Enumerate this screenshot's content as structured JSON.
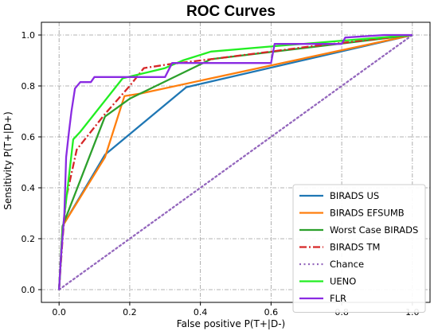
{
  "chart_data": {
    "type": "line",
    "title": "ROC Curves",
    "xlabel": "False positive P(T+|D-)",
    "ylabel": "Sensitivity P(T+|D+)",
    "xlim": [
      0,
      1
    ],
    "ylim": [
      0,
      1
    ],
    "xticks": [
      "0.0",
      "0.2",
      "0.4",
      "0.6",
      "0.8",
      "1.0"
    ],
    "yticks": [
      "0.0",
      "0.2",
      "0.4",
      "0.6",
      "0.8",
      "1.0"
    ],
    "grid": true,
    "legend_position": "lower-right",
    "series": [
      {
        "name": "BIRADS US",
        "color": "#1f77b4",
        "style": "solid",
        "x": [
          0.0,
          0.01,
          0.13,
          0.36,
          1.0
        ],
        "y": [
          0.0,
          0.25,
          0.53,
          0.795,
          1.0
        ]
      },
      {
        "name": "BIRADS EFSUMB",
        "color": "#ff7f0e",
        "style": "solid",
        "x": [
          0.0,
          0.01,
          0.13,
          0.185,
          0.23,
          1.0
        ],
        "y": [
          0.0,
          0.25,
          0.52,
          0.76,
          0.77,
          1.0
        ]
      },
      {
        "name": "Worst Case BIRADS",
        "color": "#2ca02c",
        "style": "solid",
        "x": [
          0.0,
          0.01,
          0.13,
          0.2,
          0.43,
          1.0
        ],
        "y": [
          0.0,
          0.25,
          0.68,
          0.75,
          0.905,
          1.0
        ]
      },
      {
        "name": "BIRADS TM",
        "color": "#d62728",
        "style": "dashdot",
        "x": [
          0.0,
          0.01,
          0.02,
          0.05,
          0.13,
          0.2,
          0.24,
          0.31,
          0.43,
          0.6,
          0.71,
          1.0
        ],
        "y": [
          0.0,
          0.2,
          0.36,
          0.55,
          0.69,
          0.8,
          0.87,
          0.885,
          0.905,
          0.935,
          0.955,
          1.0
        ]
      },
      {
        "name": "Chance",
        "color": "#9467bd",
        "style": "dotted",
        "x": [
          0.0,
          1.0
        ],
        "y": [
          0.0,
          1.0
        ]
      },
      {
        "name": "UENO",
        "color": "#22ee22",
        "style": "solid",
        "x": [
          0.0,
          0.01,
          0.04,
          0.06,
          0.18,
          0.3,
          0.35,
          0.43,
          0.6,
          1.0
        ],
        "y": [
          0.0,
          0.23,
          0.59,
          0.62,
          0.83,
          0.87,
          0.9,
          0.935,
          0.955,
          1.0
        ]
      },
      {
        "name": "FLR",
        "color": "#8a2be2",
        "style": "solid",
        "x": [
          0.0,
          0.005,
          0.015,
          0.02,
          0.028,
          0.035,
          0.045,
          0.06,
          0.09,
          0.1,
          0.3,
          0.32,
          0.6,
          0.61,
          0.8,
          0.81,
          0.92,
          1.0
        ],
        "y": [
          0.0,
          0.12,
          0.3,
          0.52,
          0.62,
          0.7,
          0.79,
          0.815,
          0.815,
          0.835,
          0.835,
          0.89,
          0.89,
          0.965,
          0.965,
          0.99,
          1.0,
          1.0
        ]
      }
    ]
  }
}
